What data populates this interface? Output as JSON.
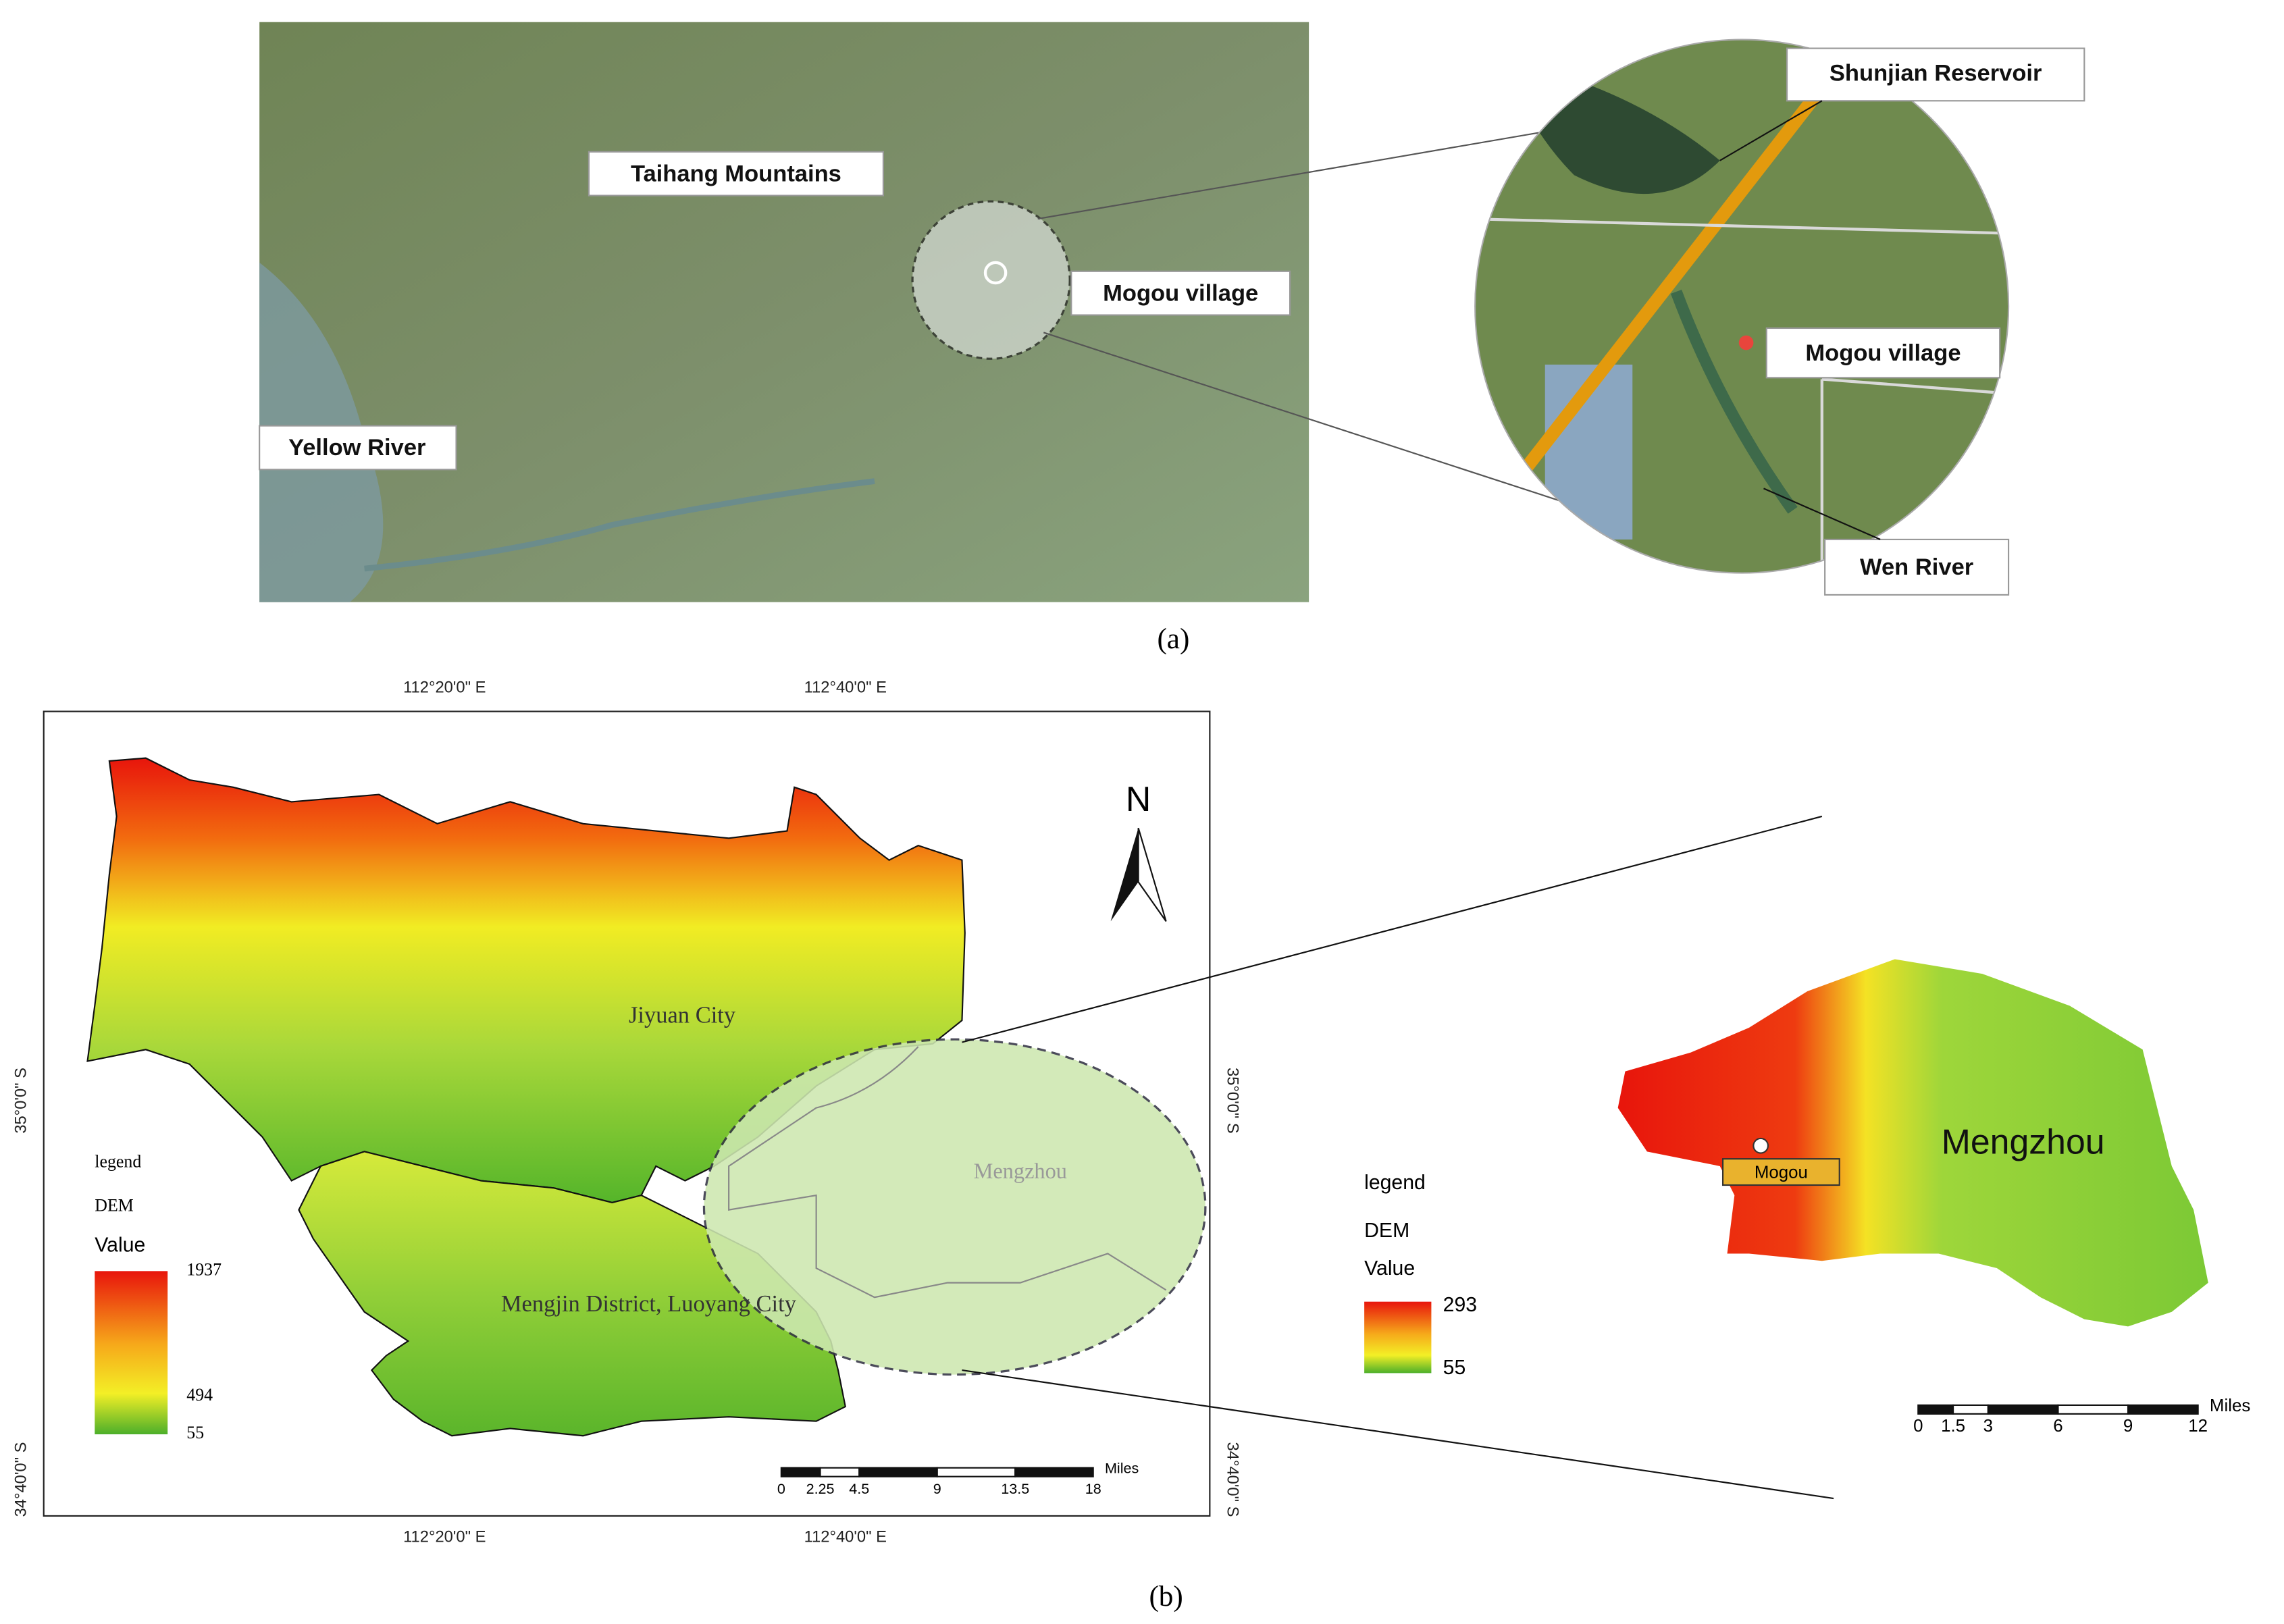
{
  "panel_a": {
    "caption": "(a)",
    "overview_labels": [
      "Taihang Mountains",
      "Mogou village",
      "Yellow River"
    ],
    "inset_labels": [
      "Shunjian Reservoir",
      "Mogou village",
      "Wen River"
    ]
  },
  "panel_b": {
    "caption": "(b)",
    "longitude_labels": [
      "112°20'0\" E",
      "112°40'0\" E"
    ],
    "latitude_labels": [
      "35°0'0\" S",
      "34°40'0\" S"
    ],
    "north": "N",
    "region_labels": [
      "Jiyuan City",
      "Mengzhou",
      "Mengjin District, Luoyang City"
    ],
    "legend": {
      "title": "legend",
      "layer": "DEM",
      "field": "Value",
      "values": [
        1937,
        494,
        55
      ]
    },
    "scale_bar": {
      "unit": "Miles",
      "ticks": [
        0,
        2.25,
        4.5,
        9,
        13.5,
        18
      ]
    },
    "inset": {
      "label": "Mengzhou",
      "village": "Mogou",
      "legend": {
        "title": "legend",
        "layer": "DEM",
        "field": "Value",
        "values": [
          293,
          55
        ]
      },
      "scale_bar": {
        "unit": "Miles",
        "ticks": [
          0,
          1.5,
          3,
          6,
          9,
          12
        ]
      }
    }
  }
}
